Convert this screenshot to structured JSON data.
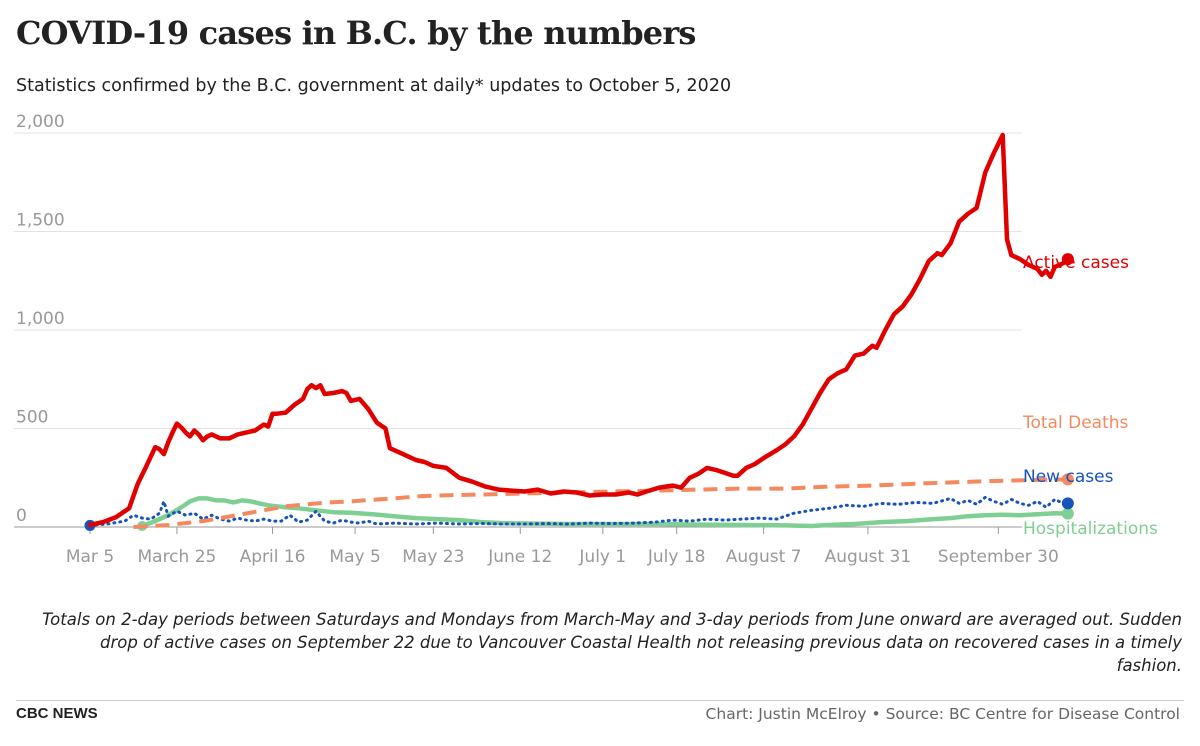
{
  "header": {
    "title": "COVID-19 cases in B.C. by the numbers",
    "subtitle": "Statistics confirmed by the B.C. government at daily* updates to October 5, 2020"
  },
  "footer": {
    "note": "Totals on 2-day periods between Saturdays and Mondays from March-May and 3-day periods from June onward are averaged out. Sudden drop of active cases on September 22 due to Vancouver Coastal Health not releasing previous data on recovered cases in a timely fashion.",
    "logo": "CBC NEWS",
    "credit": "Chart: Justin McElroy • Source: BC Centre for Disease Control"
  },
  "chart_data": {
    "type": "line",
    "title": "COVID-19 cases in B.C. by the numbers",
    "xlabel": "",
    "ylabel": "",
    "x_range_days": [
      0,
      211
    ],
    "ylim": [
      0,
      2000
    ],
    "y_ticks": [
      {
        "value": 0,
        "label": "0"
      },
      {
        "value": 500,
        "label": "500"
      },
      {
        "value": 1000,
        "label": "1,000"
      },
      {
        "value": 1500,
        "label": "1,500"
      },
      {
        "value": 2000,
        "label": "2,000"
      }
    ],
    "x_ticks": [
      {
        "day": 0,
        "label": "Mar 5"
      },
      {
        "day": 20,
        "label": "March 25"
      },
      {
        "day": 42,
        "label": "April 16"
      },
      {
        "day": 61,
        "label": "May 5"
      },
      {
        "day": 79,
        "label": "May 23"
      },
      {
        "day": 99,
        "label": "June 12"
      },
      {
        "day": 118,
        "label": "July 1"
      },
      {
        "day": 135,
        "label": "July 18"
      },
      {
        "day": 155,
        "label": "August 7"
      },
      {
        "day": 179,
        "label": "August 31"
      },
      {
        "day": 209,
        "label": "September 30"
      }
    ],
    "series": [
      {
        "name": "Active cases",
        "color": "#e00000",
        "style": "solid",
        "end_marker": true,
        "points": [
          [
            0,
            10
          ],
          [
            3,
            25
          ],
          [
            6,
            50
          ],
          [
            9,
            95
          ],
          [
            11,
            220
          ],
          [
            13,
            310
          ],
          [
            15,
            405
          ],
          [
            16,
            395
          ],
          [
            17,
            370
          ],
          [
            18,
            430
          ],
          [
            19,
            480
          ],
          [
            20,
            525
          ],
          [
            21,
            505
          ],
          [
            22,
            480
          ],
          [
            23,
            460
          ],
          [
            24,
            490
          ],
          [
            25,
            470
          ],
          [
            26,
            440
          ],
          [
            27,
            460
          ],
          [
            28,
            470
          ],
          [
            30,
            450
          ],
          [
            32,
            450
          ],
          [
            34,
            470
          ],
          [
            36,
            480
          ],
          [
            38,
            490
          ],
          [
            40,
            520
          ],
          [
            41,
            510
          ],
          [
            42,
            575
          ],
          [
            43,
            575
          ],
          [
            45,
            580
          ],
          [
            47,
            620
          ],
          [
            49,
            650
          ],
          [
            50,
            700
          ],
          [
            51,
            720
          ],
          [
            52,
            705
          ],
          [
            53,
            720
          ],
          [
            54,
            675
          ],
          [
            56,
            680
          ],
          [
            58,
            690
          ],
          [
            59,
            680
          ],
          [
            60,
            640
          ],
          [
            62,
            650
          ],
          [
            64,
            600
          ],
          [
            66,
            530
          ],
          [
            68,
            500
          ],
          [
            69,
            400
          ],
          [
            71,
            380
          ],
          [
            73,
            360
          ],
          [
            75,
            340
          ],
          [
            77,
            330
          ],
          [
            79,
            310
          ],
          [
            82,
            300
          ],
          [
            85,
            250
          ],
          [
            88,
            230
          ],
          [
            91,
            205
          ],
          [
            94,
            190
          ],
          [
            97,
            185
          ],
          [
            100,
            180
          ],
          [
            103,
            190
          ],
          [
            106,
            170
          ],
          [
            109,
            180
          ],
          [
            112,
            175
          ],
          [
            115,
            160
          ],
          [
            118,
            165
          ],
          [
            121,
            165
          ],
          [
            124,
            175
          ],
          [
            126,
            165
          ],
          [
            128,
            180
          ],
          [
            131,
            200
          ],
          [
            134,
            210
          ],
          [
            136,
            200
          ],
          [
            138,
            250
          ],
          [
            140,
            270
          ],
          [
            142,
            300
          ],
          [
            144,
            290
          ],
          [
            146,
            275
          ],
          [
            148,
            260
          ],
          [
            149,
            260
          ],
          [
            151,
            300
          ],
          [
            153,
            320
          ],
          [
            155,
            350
          ],
          [
            158,
            390
          ],
          [
            160,
            420
          ],
          [
            162,
            460
          ],
          [
            164,
            520
          ],
          [
            166,
            600
          ],
          [
            168,
            680
          ],
          [
            170,
            750
          ],
          [
            172,
            780
          ],
          [
            174,
            800
          ],
          [
            176,
            870
          ],
          [
            178,
            880
          ],
          [
            180,
            920
          ],
          [
            181,
            910
          ],
          [
            183,
            1000
          ],
          [
            185,
            1080
          ],
          [
            187,
            1120
          ],
          [
            189,
            1180
          ],
          [
            191,
            1260
          ],
          [
            193,
            1350
          ],
          [
            195,
            1390
          ],
          [
            196,
            1380
          ],
          [
            198,
            1440
          ],
          [
            200,
            1550
          ],
          [
            202,
            1590
          ],
          [
            204,
            1620
          ],
          [
            206,
            1800
          ],
          [
            208,
            1900
          ],
          [
            210,
            1990
          ],
          [
            211,
            1460
          ],
          [
            212,
            1380
          ],
          [
            214,
            1360
          ],
          [
            216,
            1330
          ],
          [
            218,
            1310
          ],
          [
            219,
            1280
          ],
          [
            220,
            1300
          ],
          [
            221,
            1270
          ],
          [
            222,
            1320
          ],
          [
            224,
            1340
          ],
          [
            225,
            1360
          ]
        ]
      },
      {
        "name": "Total Deaths",
        "color": "#f4895f",
        "style": "dashed",
        "end_marker": true,
        "points": [
          [
            10,
            0
          ],
          [
            14,
            5
          ],
          [
            18,
            10
          ],
          [
            22,
            20
          ],
          [
            26,
            30
          ],
          [
            30,
            45
          ],
          [
            35,
            65
          ],
          [
            40,
            85
          ],
          [
            45,
            105
          ],
          [
            50,
            115
          ],
          [
            55,
            125
          ],
          [
            60,
            130
          ],
          [
            65,
            138
          ],
          [
            70,
            145
          ],
          [
            75,
            155
          ],
          [
            80,
            160
          ],
          [
            90,
            165
          ],
          [
            100,
            170
          ],
          [
            110,
            175
          ],
          [
            120,
            180
          ],
          [
            130,
            185
          ],
          [
            140,
            190
          ],
          [
            150,
            195
          ],
          [
            160,
            195
          ],
          [
            170,
            205
          ],
          [
            180,
            210
          ],
          [
            190,
            220
          ],
          [
            200,
            228
          ],
          [
            210,
            235
          ],
          [
            225,
            242
          ]
        ]
      },
      {
        "name": "New cases",
        "color": "#1654b9",
        "style": "dotted",
        "end_marker": true,
        "points": [
          [
            0,
            8
          ],
          [
            4,
            15
          ],
          [
            8,
            30
          ],
          [
            10,
            60
          ],
          [
            12,
            45
          ],
          [
            14,
            40
          ],
          [
            16,
            70
          ],
          [
            17,
            130
          ],
          [
            18,
            55
          ],
          [
            20,
            80
          ],
          [
            22,
            60
          ],
          [
            24,
            70
          ],
          [
            26,
            40
          ],
          [
            28,
            60
          ],
          [
            30,
            40
          ],
          [
            32,
            30
          ],
          [
            34,
            45
          ],
          [
            36,
            35
          ],
          [
            38,
            30
          ],
          [
            40,
            40
          ],
          [
            42,
            30
          ],
          [
            44,
            30
          ],
          [
            46,
            60
          ],
          [
            48,
            25
          ],
          [
            50,
            35
          ],
          [
            52,
            80
          ],
          [
            54,
            30
          ],
          [
            56,
            20
          ],
          [
            58,
            35
          ],
          [
            60,
            25
          ],
          [
            62,
            20
          ],
          [
            64,
            30
          ],
          [
            66,
            15
          ],
          [
            70,
            20
          ],
          [
            75,
            15
          ],
          [
            80,
            20
          ],
          [
            85,
            15
          ],
          [
            90,
            18
          ],
          [
            95,
            15
          ],
          [
            100,
            15
          ],
          [
            105,
            18
          ],
          [
            110,
            15
          ],
          [
            115,
            20
          ],
          [
            120,
            18
          ],
          [
            125,
            20
          ],
          [
            130,
            25
          ],
          [
            134,
            35
          ],
          [
            138,
            30
          ],
          [
            142,
            40
          ],
          [
            146,
            35
          ],
          [
            150,
            40
          ],
          [
            154,
            45
          ],
          [
            158,
            40
          ],
          [
            162,
            70
          ],
          [
            166,
            85
          ],
          [
            170,
            95
          ],
          [
            174,
            110
          ],
          [
            178,
            105
          ],
          [
            182,
            120
          ],
          [
            186,
            115
          ],
          [
            190,
            125
          ],
          [
            194,
            120
          ],
          [
            198,
            145
          ],
          [
            200,
            120
          ],
          [
            202,
            135
          ],
          [
            204,
            115
          ],
          [
            206,
            150
          ],
          [
            208,
            130
          ],
          [
            210,
            115
          ],
          [
            212,
            140
          ],
          [
            214,
            120
          ],
          [
            216,
            110
          ],
          [
            218,
            130
          ],
          [
            220,
            100
          ],
          [
            222,
            140
          ],
          [
            224,
            120
          ],
          [
            225,
            120
          ]
        ]
      },
      {
        "name": "Hospitalizations",
        "color": "#7fcf94",
        "style": "solid",
        "end_marker": true,
        "points": [
          [
            12,
            5
          ],
          [
            15,
            30
          ],
          [
            18,
            60
          ],
          [
            21,
            100
          ],
          [
            23,
            130
          ],
          [
            25,
            145
          ],
          [
            27,
            145
          ],
          [
            29,
            135
          ],
          [
            31,
            135
          ],
          [
            33,
            125
          ],
          [
            35,
            135
          ],
          [
            37,
            130
          ],
          [
            39,
            120
          ],
          [
            41,
            110
          ],
          [
            43,
            105
          ],
          [
            45,
            100
          ],
          [
            48,
            95
          ],
          [
            52,
            85
          ],
          [
            56,
            75
          ],
          [
            60,
            72
          ],
          [
            65,
            65
          ],
          [
            70,
            55
          ],
          [
            75,
            45
          ],
          [
            80,
            40
          ],
          [
            85,
            35
          ],
          [
            90,
            25
          ],
          [
            95,
            20
          ],
          [
            100,
            18
          ],
          [
            110,
            15
          ],
          [
            120,
            15
          ],
          [
            130,
            15
          ],
          [
            140,
            12
          ],
          [
            150,
            10
          ],
          [
            160,
            8
          ],
          [
            166,
            5
          ],
          [
            170,
            10
          ],
          [
            176,
            15
          ],
          [
            182,
            25
          ],
          [
            188,
            30
          ],
          [
            194,
            40
          ],
          [
            198,
            45
          ],
          [
            202,
            55
          ],
          [
            206,
            60
          ],
          [
            210,
            62
          ],
          [
            214,
            60
          ],
          [
            218,
            65
          ],
          [
            222,
            70
          ],
          [
            225,
            68
          ]
        ]
      }
    ]
  }
}
